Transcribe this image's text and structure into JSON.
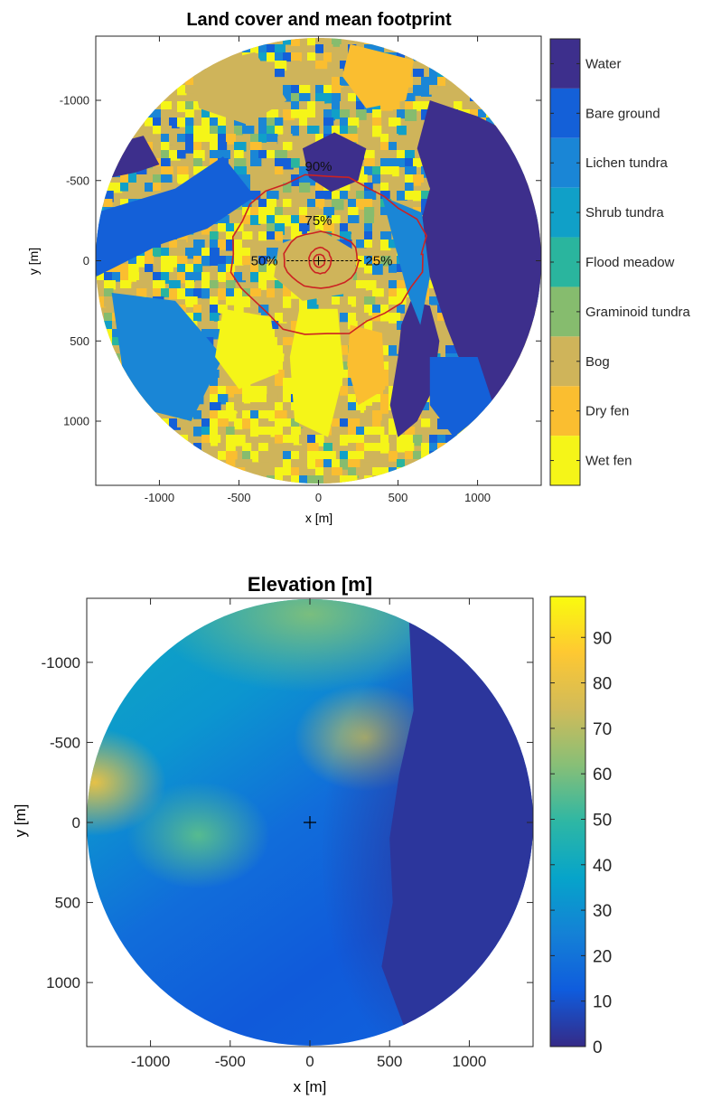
{
  "chart_data": [
    {
      "type": "heatmap",
      "title": "Land cover and mean footprint",
      "xlabel": "x [m]",
      "ylabel": "y [m]",
      "xlim": [
        -1400,
        1400
      ],
      "ylim": [
        1400,
        -1400
      ],
      "y_axis_reversed": true,
      "xticks": [
        -1000,
        -500,
        0,
        500,
        1000
      ],
      "yticks": [
        -1000,
        -500,
        0,
        500,
        1000
      ],
      "map_extent": "circle, radius 1400 m, centered at (0, 0)",
      "colorbar": {
        "type": "categorical",
        "categories": [
          {
            "label": "Water",
            "color": "#3d2f8c"
          },
          {
            "label": "Bare ground",
            "color": "#1460d8"
          },
          {
            "label": "Lichen tundra",
            "color": "#1a86d6"
          },
          {
            "label": "Shrub tundra",
            "color": "#10a0c8"
          },
          {
            "label": "Flood meadow",
            "color": "#2ab59e"
          },
          {
            "label": "Graminoid tundra",
            "color": "#86bc6e"
          },
          {
            "label": "Bog",
            "color": "#cfb45a"
          },
          {
            "label": "Dry fen",
            "color": "#fabe30"
          },
          {
            "label": "Wet fen",
            "color": "#f5f518"
          }
        ]
      },
      "footprint_contours": [
        {
          "label": "90%",
          "approx_extent": {
            "x": [
              -550,
              660
            ],
            "y": [
              -530,
              450
            ]
          }
        },
        {
          "label": "75%",
          "approx_extent": {
            "x": [
              -220,
              250
            ],
            "y": [
              -180,
              170
            ]
          }
        },
        {
          "label": "50%",
          "approx_extent": {
            "x": [
              -60,
              80
            ],
            "y": [
              -80,
              80
            ]
          }
        },
        {
          "label": "25%",
          "approx_extent": {
            "x": [
              -30,
              40
            ],
            "y": [
              -40,
              40
            ]
          }
        }
      ],
      "footprint_line_color": "#cc2222",
      "tower_marker": {
        "x": 0,
        "y": 0
      }
    },
    {
      "type": "heatmap",
      "title": "Elevation [m]",
      "xlabel": "x [m]",
      "ylabel": "y [m]",
      "xlim": [
        -1400,
        1400
      ],
      "ylim": [
        1400,
        -1400
      ],
      "y_axis_reversed": true,
      "xticks": [
        -1000,
        -500,
        0,
        500,
        1000
      ],
      "yticks": [
        -1000,
        -500,
        0,
        500,
        1000
      ],
      "map_extent": "circle, radius 1400 m, centered at (0, 0)",
      "colorbar": {
        "type": "continuous",
        "range": [
          0,
          99
        ],
        "ticks": [
          0,
          10,
          20,
          30,
          40,
          50,
          60,
          70,
          80,
          90
        ],
        "colormap": "parula",
        "colormap_stops": [
          "#352a87",
          "#0f5cdd",
          "#1481d6",
          "#06a4ca",
          "#2eb7a4",
          "#87bf77",
          "#d1bb59",
          "#fec832",
          "#f9fb0e"
        ]
      },
      "elevation_features": [
        {
          "x": -1350,
          "y": -250,
          "elevation": 80
        },
        {
          "x": 350,
          "y": -530,
          "elevation": 70
        },
        {
          "x": -700,
          "y": 80,
          "elevation": 55
        },
        {
          "x": 0,
          "y": -1300,
          "elevation": 60
        },
        {
          "x": 900,
          "y": 200,
          "elevation": 3
        }
      ],
      "tower_marker": {
        "x": 0,
        "y": 0
      }
    }
  ]
}
